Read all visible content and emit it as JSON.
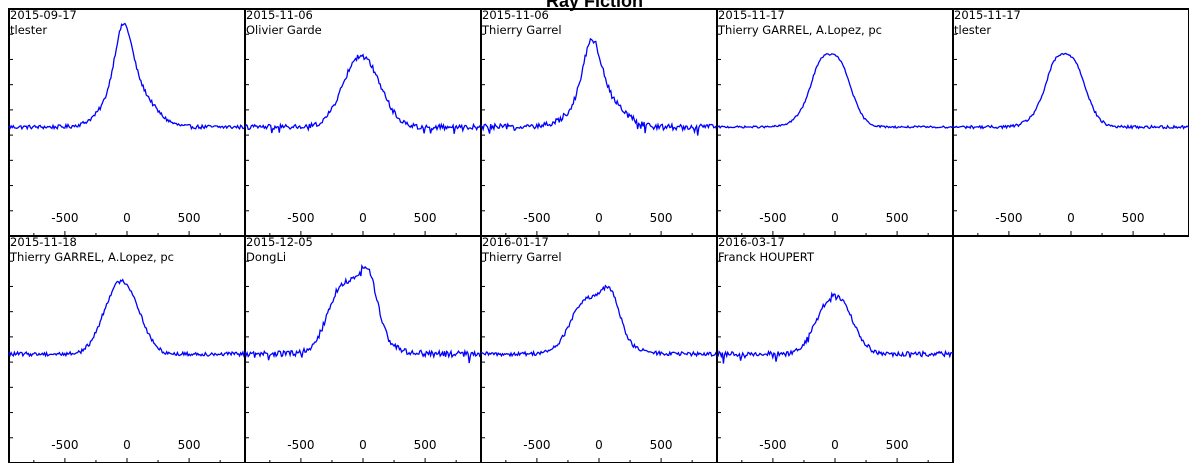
{
  "title": "Ray Fiction",
  "chart_data": [
    {
      "type": "line",
      "date": "2015-09-17",
      "observer": "tlester",
      "x_ticks": [
        -500,
        0,
        500
      ],
      "xlim": [
        -950,
        950
      ],
      "profile": "single",
      "peak": 1.0,
      "peak_x": -30,
      "noise": 0.02
    },
    {
      "type": "line",
      "date": "2015-11-06",
      "observer": "Olivier Garde",
      "x_ticks": [
        -500,
        0,
        500
      ],
      "xlim": [
        -950,
        950
      ],
      "profile": "single-shoulder",
      "peak": 0.78,
      "peak_x": -50,
      "noise": 0.025
    },
    {
      "type": "line",
      "date": "2015-11-06",
      "observer": "Thierry Garrel",
      "x_ticks": [
        -500,
        0,
        500
      ],
      "xlim": [
        -950,
        950
      ],
      "profile": "single",
      "peak": 0.85,
      "peak_x": -60,
      "noise": 0.03
    },
    {
      "type": "line",
      "date": "2015-11-17",
      "observer": "Thierry GARREL,  A.Lopez, pc",
      "x_ticks": [
        -500,
        0,
        500
      ],
      "xlim": [
        -950,
        950
      ],
      "profile": "double-weak",
      "peak": 0.75,
      "peak_x": -40,
      "noise": 0.01
    },
    {
      "type": "line",
      "date": "2015-11-17",
      "observer": "tlester",
      "x_ticks": [
        -500,
        0,
        500
      ],
      "xlim": [
        -950,
        950
      ],
      "profile": "double-weak",
      "peak": 0.75,
      "peak_x": -50,
      "noise": 0.015
    },
    {
      "type": "line",
      "date": "2015-11-18",
      "observer": "Thierry GARREL,  A.Lopez, pc",
      "x_ticks": [
        -500,
        0,
        500
      ],
      "xlim": [
        -950,
        950
      ],
      "profile": "flat-top",
      "peak": 0.68,
      "peak_x": -40,
      "noise": 0.02
    },
    {
      "type": "line",
      "date": "2015-12-05",
      "observer": "DongLi",
      "x_ticks": [
        -500,
        0,
        500
      ],
      "xlim": [
        -950,
        950
      ],
      "profile": "double",
      "peak": 0.65,
      "peak_x": -50,
      "noise": 0.03
    },
    {
      "type": "line",
      "date": "2016-01-17",
      "observer": "Thierry Garrel",
      "x_ticks": [
        -500,
        0,
        500
      ],
      "xlim": [
        -950,
        950
      ],
      "profile": "double",
      "peak": 0.5,
      "peak_x": 0,
      "noise": 0.02
    },
    {
      "type": "line",
      "date": "2016-03-17",
      "observer": "Franck HOUPERT",
      "x_ticks": [
        -500,
        0,
        500
      ],
      "xlim": [
        -950,
        950
      ],
      "profile": "flat-top",
      "peak": 0.55,
      "peak_x": 0,
      "noise": 0.025
    }
  ],
  "colors": {
    "line": "#0000ff",
    "frame": "#000000"
  }
}
